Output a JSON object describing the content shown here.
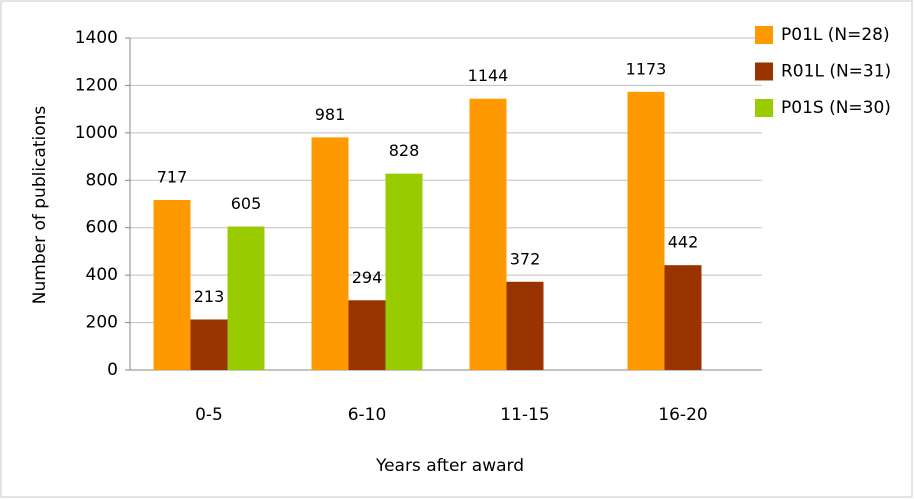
{
  "chart_data": {
    "type": "bar",
    "x_label": "Years after award",
    "y_label": "Number of publications",
    "categories": [
      "0-5",
      "6-10",
      "11-15",
      "16-20"
    ],
    "series": [
      {
        "name": "P01L (N=28)",
        "color": "#ff9900",
        "values": [
          717,
          981,
          1144,
          1173
        ]
      },
      {
        "name": "R01L (N=31)",
        "color": "#993300",
        "values": [
          213,
          294,
          372,
          442
        ]
      },
      {
        "name": "P01S (N=30)",
        "color": "#99cc00",
        "values": [
          605,
          828,
          null,
          null
        ]
      }
    ],
    "ylim": [
      0,
      1400
    ],
    "yticks": [
      0,
      200,
      400,
      600,
      800,
      1000,
      1200,
      1400
    ],
    "grid": true,
    "legend": "right"
  }
}
